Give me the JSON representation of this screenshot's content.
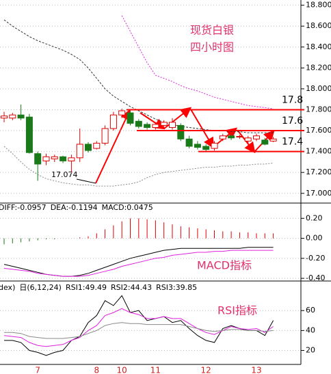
{
  "chart_data": [
    {
      "type": "candlestick",
      "title": "现货白银",
      "subtitle": "四小时图",
      "categories": [
        null,
        null,
        null,
        null,
        "7",
        null,
        null,
        null,
        null,
        null,
        null,
        "8",
        null,
        null,
        "10",
        null,
        null,
        null,
        "11",
        null,
        null,
        null,
        null,
        null,
        "12",
        null,
        null,
        null,
        null,
        null,
        "13",
        null,
        null
      ],
      "open": [
        17.72,
        17.72,
        17.75,
        17.73,
        17.38,
        17.31,
        17.33,
        17.35,
        17.31,
        17.34,
        17.47,
        17.43,
        17.48,
        17.62,
        17.75,
        17.77,
        17.69,
        17.66,
        17.63,
        17.65,
        17.63,
        17.65,
        17.52,
        17.47,
        17.45,
        17.43,
        17.52,
        17.55,
        17.54,
        17.5,
        17.52,
        17.51,
        17.5
      ],
      "high": [
        17.78,
        17.77,
        17.85,
        17.76,
        17.4,
        17.38,
        17.37,
        17.36,
        17.37,
        17.62,
        17.49,
        17.5,
        17.65,
        17.78,
        17.81,
        17.79,
        17.71,
        17.68,
        17.68,
        17.7,
        17.72,
        17.67,
        17.55,
        17.5,
        17.47,
        17.5,
        17.57,
        17.57,
        17.56,
        17.55,
        17.57,
        17.53,
        17.54
      ],
      "low": [
        17.68,
        17.7,
        17.7,
        17.38,
        17.12,
        17.27,
        17.3,
        17.29,
        17.2,
        17.3,
        17.39,
        17.42,
        17.46,
        17.6,
        17.72,
        17.65,
        17.62,
        17.61,
        17.61,
        17.63,
        17.61,
        17.5,
        17.43,
        17.42,
        17.4,
        17.41,
        17.5,
        17.51,
        17.52,
        17.48,
        17.5,
        17.46,
        17.49
      ],
      "close": [
        17.74,
        17.75,
        17.72,
        17.39,
        17.28,
        17.35,
        17.35,
        17.31,
        17.34,
        17.47,
        17.41,
        17.48,
        17.62,
        17.75,
        17.79,
        17.67,
        17.64,
        17.63,
        17.66,
        17.68,
        17.68,
        17.52,
        17.45,
        17.44,
        17.42,
        17.48,
        17.55,
        17.53,
        17.545,
        17.53,
        17.55,
        17.47,
        17.52
      ],
      "up_color": "#e00000",
      "down_color": "#1a7a1a",
      "series": [
        {
          "color": "#333333",
          "dash": "3,2",
          "values": [
            18.66,
            18.6,
            18.55,
            18.5,
            18.46,
            18.43,
            18.4,
            18.37,
            18.33,
            18.28,
            18.2,
            18.1,
            18.0,
            17.93,
            17.88,
            17.83,
            17.79,
            17.75,
            17.71,
            17.68,
            17.66,
            17.64,
            17.63,
            17.62,
            17.61,
            17.6,
            17.6,
            17.59,
            17.59,
            17.58,
            17.58,
            17.58,
            17.58
          ]
        },
        {
          "color": "#e020e0",
          "dash": "2,2",
          "values": [
            null,
            null,
            null,
            null,
            null,
            null,
            null,
            null,
            null,
            null,
            null,
            null,
            null,
            null,
            18.7,
            18.55,
            18.4,
            18.25,
            18.13,
            18.1,
            18.07,
            18.03,
            18.0,
            17.98,
            17.95,
            17.92,
            17.9,
            17.88,
            17.86,
            17.84,
            17.83,
            17.82,
            17.81
          ]
        },
        {
          "color": "#888888",
          "dash": "2,2",
          "values": [
            17.45,
            17.38,
            17.3,
            17.23,
            17.18,
            17.14,
            17.12,
            17.1,
            17.09,
            17.08,
            17.08,
            17.07,
            17.07,
            17.07,
            17.08,
            17.09,
            17.11,
            17.15,
            17.18,
            17.2,
            17.21,
            17.22,
            17.23,
            17.24,
            17.25,
            17.25,
            17.26,
            17.26,
            17.27,
            17.27,
            17.28,
            17.28,
            17.29
          ]
        }
      ],
      "low_label": 17.074,
      "levels": [
        17.8,
        17.6,
        17.4
      ],
      "level_color": "#ff0000",
      "level_label_color": "#e020e0",
      "ylim": [
        16.92,
        18.85
      ],
      "yticks": [
        {
          "value": 17.0,
          "label": "17.000"
        },
        {
          "value": 17.2,
          "label": "17.200"
        },
        {
          "value": 17.4,
          "label": "17.400"
        },
        {
          "value": 17.6,
          "label": "17.600"
        },
        {
          "value": 17.8,
          "label": "17.800"
        },
        {
          "value": 18.0,
          "label": "18.000"
        },
        {
          "value": 18.2,
          "label": "18.200"
        },
        {
          "value": 18.4,
          "label": "18.400"
        },
        {
          "value": 18.6,
          "label": "18.600"
        },
        {
          "value": 18.8,
          "label": "18.800"
        }
      ],
      "grid": true
    },
    {
      "type": "macd",
      "annotation": "MACD指标",
      "header": [
        {
          "text": "DIFF:-0.0957",
          "color": "#000000"
        },
        {
          "text": "DEA:-0.1194",
          "color": "#e020e0"
        },
        {
          "text": "MACD:0.0475",
          "color": "#888888"
        }
      ],
      "values": [
        -0.06,
        -0.05,
        -0.04,
        -0.03,
        -0.02,
        -0.01,
        -0.01,
        0.0,
        0.0,
        0.01,
        0.02,
        0.05,
        0.09,
        0.13,
        0.17,
        0.2,
        0.2,
        0.19,
        0.18,
        0.16,
        0.14,
        0.12,
        0.11,
        0.1,
        0.09,
        0.08,
        0.07,
        0.07,
        0.06,
        0.06,
        0.05,
        0.05,
        0.05
      ],
      "up_color": "#e00000",
      "down_color": "#1a7a1a",
      "series": [
        {
          "color": "#000000",
          "values": [
            -0.26,
            -0.28,
            -0.3,
            -0.32,
            -0.34,
            -0.36,
            -0.37,
            -0.38,
            -0.38,
            -0.37,
            -0.35,
            -0.32,
            -0.29,
            -0.26,
            -0.23,
            -0.2,
            -0.18,
            -0.16,
            -0.14,
            -0.12,
            -0.11,
            -0.1,
            -0.1,
            -0.1,
            -0.1,
            -0.1,
            -0.1,
            -0.1,
            -0.1,
            -0.09,
            -0.09,
            -0.09,
            -0.09
          ]
        },
        {
          "color": "#e020e0",
          "values": [
            -0.3,
            -0.31,
            -0.32,
            -0.33,
            -0.35,
            -0.36,
            -0.37,
            -0.38,
            -0.38,
            -0.38,
            -0.37,
            -0.35,
            -0.33,
            -0.31,
            -0.28,
            -0.26,
            -0.24,
            -0.22,
            -0.2,
            -0.19,
            -0.17,
            -0.16,
            -0.15,
            -0.14,
            -0.14,
            -0.13,
            -0.13,
            -0.12,
            -0.12,
            -0.12,
            -0.12,
            -0.12,
            -0.12
          ]
        }
      ],
      "ylim": [
        -0.42,
        0.25
      ],
      "yticks": [
        {
          "value": 0.2,
          "label": "0.20"
        },
        {
          "value": 0.0,
          "label": "0.00"
        },
        {
          "value": -0.2,
          "label": "-0.20"
        },
        {
          "value": -0.4,
          "label": "-0.40"
        }
      ],
      "grid": true
    },
    {
      "type": "rsi",
      "annotation": "RSI指标",
      "header": [
        {
          "text": "dex)",
          "color": "#000000"
        },
        {
          "text": "日(6,12,24)",
          "color": "#000000"
        },
        {
          "text": "RSI1:49.49",
          "color": "#000000"
        },
        {
          "text": "RSI2:44.43",
          "color": "#e020e0"
        },
        {
          "text": "RSI3:39.85",
          "color": "#888888"
        }
      ],
      "series": [
        {
          "color": "#000000",
          "values": [
            30,
            30,
            28,
            20,
            18,
            15,
            18,
            20,
            30,
            34,
            48,
            55,
            70,
            65,
            75,
            58,
            60,
            50,
            52,
            54,
            48,
            50,
            42,
            35,
            30,
            28,
            42,
            45,
            42,
            40,
            40,
            35,
            50
          ]
        },
        {
          "color": "#e020e0",
          "values": [
            35,
            34,
            33,
            28,
            25,
            24,
            25,
            26,
            30,
            33,
            40,
            45,
            55,
            58,
            62,
            58,
            56,
            52,
            52,
            54,
            52,
            52,
            47,
            42,
            38,
            36,
            40,
            44,
            42,
            41,
            42,
            38,
            44
          ]
        },
        {
          "color": "#888888",
          "values": [
            38,
            38,
            37,
            34,
            33,
            32,
            32,
            32,
            33,
            34,
            37,
            40,
            45,
            47,
            48,
            47,
            47,
            46,
            46,
            46,
            46,
            46,
            44,
            42,
            40,
            39,
            40,
            41,
            41,
            40,
            40,
            39,
            40
          ]
        }
      ],
      "ylim": [
        8,
        78
      ],
      "yticks": [
        20,
        40,
        60
      ],
      "grid": true
    }
  ]
}
